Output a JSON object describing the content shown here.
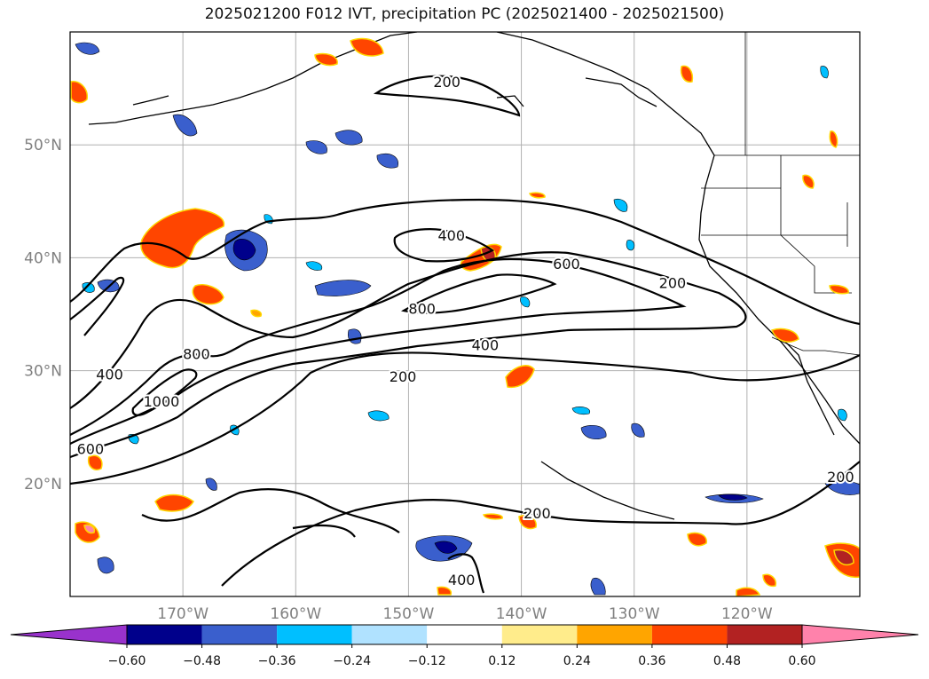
{
  "title": "2025021200 F012 IVT, precipitation PC (2025021400 - 2025021500)",
  "map": {
    "lon_range": [
      -180,
      -110
    ],
    "lat_range": [
      10,
      60
    ],
    "lat_ticks": [
      {
        "value": 20,
        "label": "20°N"
      },
      {
        "value": 30,
        "label": "30°N"
      },
      {
        "value": 40,
        "label": "40°N"
      },
      {
        "value": 50,
        "label": "50°N"
      }
    ],
    "lon_ticks": [
      {
        "value": -170,
        "label": "170°W"
      },
      {
        "value": -160,
        "label": "160°W"
      },
      {
        "value": -150,
        "label": "150°W"
      },
      {
        "value": -140,
        "label": "140°W"
      },
      {
        "value": -130,
        "label": "130°W"
      },
      {
        "value": -120,
        "label": "120°W"
      }
    ],
    "contour_labels": [
      {
        "text": "200",
        "lon": -146.6,
        "lat": 55.6
      },
      {
        "text": "400",
        "lon": -146.2,
        "lat": 42.0
      },
      {
        "text": "600",
        "lon": -136.0,
        "lat": 39.5
      },
      {
        "text": "200",
        "lon": -126.6,
        "lat": 37.8
      },
      {
        "text": "800",
        "lon": -148.8,
        "lat": 35.5
      },
      {
        "text": "400",
        "lon": -143.2,
        "lat": 32.3
      },
      {
        "text": "800",
        "lon": -168.8,
        "lat": 31.5
      },
      {
        "text": "400",
        "lon": -176.5,
        "lat": 29.7
      },
      {
        "text": "1000",
        "lon": -171.9,
        "lat": 27.3
      },
      {
        "text": "200",
        "lon": -150.5,
        "lat": 29.5
      },
      {
        "text": "600",
        "lon": -178.2,
        "lat": 23.1
      },
      {
        "text": "200",
        "lon": -111.7,
        "lat": 20.6
      },
      {
        "text": "200",
        "lon": -138.6,
        "lat": 17.4
      },
      {
        "text": "400",
        "lon": -145.3,
        "lat": 11.5
      }
    ]
  },
  "colorbar": {
    "colors": [
      "#9932cc",
      "#00008b",
      "#3a5fcd",
      "#00bfff",
      "#b0e2ff",
      "#ffffff",
      "#ffec8b",
      "#ffa500",
      "#ff4500",
      "#b22222",
      "#ff82ab"
    ],
    "tick_labels": [
      "−0.60",
      "−0.48",
      "−0.36",
      "−0.24",
      "−0.12",
      "0.12",
      "0.24",
      "0.36",
      "0.48",
      "0.60"
    ]
  }
}
